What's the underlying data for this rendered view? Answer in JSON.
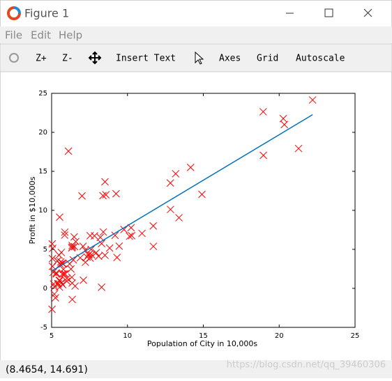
{
  "window": {
    "title": "Figure 1"
  },
  "menu": [
    "File",
    "Edit",
    "Help"
  ],
  "toolbar": [
    "Z+",
    "Z-",
    "Insert Text",
    "Axes",
    "Grid",
    "Autoscale"
  ],
  "status": "(8.4654, 14.691)",
  "watermark": "https://blog.csdn.net/qq_39460306",
  "chart_data": {
    "type": "scatter",
    "xlabel": "Population of City in 10,000s",
    "ylabel": "Profit in $10,000s",
    "xlim": [
      5,
      25
    ],
    "xticks": [
      5,
      10,
      15,
      20,
      25
    ],
    "ylim": [
      -5,
      25
    ],
    "yticks": [
      -5,
      0,
      5,
      10,
      15,
      20,
      25
    ],
    "x": [
      6.1101,
      5.5277,
      8.5186,
      7.0032,
      5.8598,
      8.3829,
      7.4764,
      8.5781,
      6.4862,
      5.0546,
      5.7107,
      14.164,
      5.734,
      8.4084,
      5.6407,
      5.3794,
      6.3654,
      5.1301,
      6.4296,
      7.0708,
      6.1891,
      20.27,
      5.4901,
      6.3261,
      5.5649,
      18.945,
      12.828,
      10.957,
      13.176,
      22.203,
      5.2524,
      6.5894,
      9.2482,
      5.8918,
      8.2111,
      7.9334,
      8.0959,
      5.6063,
      12.836,
      6.3534,
      5.4069,
      6.8825,
      11.708,
      5.7737,
      7.8247,
      7.0931,
      5.0702,
      5.8014,
      11.7,
      5.5416,
      7.5402,
      5.3077,
      7.4239,
      7.6031,
      6.3328,
      6.3589,
      6.2742,
      5.6397,
      9.3102,
      9.4536,
      8.8254,
      5.1793,
      21.279,
      14.908,
      18.959,
      7.2182,
      8.2951,
      10.236,
      5.4994,
      20.341,
      10.136,
      7.3345,
      6.0062,
      7.2259,
      5.0269,
      6.5479,
      7.5386,
      5.0365,
      10.274,
      5.1077,
      5.7292,
      5.1884,
      6.3557,
      9.7687,
      6.5159,
      8.5172,
      9.1802,
      6.002,
      5.5204,
      5.0594,
      5.7077,
      7.6366,
      5.8707,
      5.3054,
      8.2934,
      13.394,
      5.4369
    ],
    "series": [
      {
        "type": "scatter",
        "color": "#ff0000",
        "marker": "x",
        "values": [
          17.592,
          9.1302,
          13.662,
          11.854,
          6.8233,
          11.886,
          4.3483,
          12,
          6.5987,
          3.8166,
          3.2522,
          15.505,
          3.1551,
          7.2258,
          0.71618,
          3.5129,
          5.3048,
          0.56077,
          3.6518,
          5.3893,
          3.1386,
          21.767,
          4.263,
          5.1875,
          3.0825,
          22.638,
          13.501,
          7.0467,
          14.692,
          24.147,
          -1.22,
          5.9966,
          12.134,
          1.8495,
          6.5426,
          4.5623,
          4.1164,
          3.3928,
          10.117,
          5.4974,
          0.55657,
          3.9115,
          5.3854,
          2.4406,
          6.7318,
          1.0463,
          5.1337,
          1.844,
          8.0043,
          1.0179,
          6.7504,
          1.8396,
          4.2885,
          4.9981,
          1.4233,
          -1.4211,
          2.4756,
          4.6042,
          3.9624,
          5.4141,
          5.1694,
          -0.74279,
          17.929,
          12.054,
          17.054,
          4.8852,
          5.7442,
          7.7754,
          1.0173,
          20.992,
          6.6799,
          4.0259,
          1.2784,
          3.3411,
          -2.6807,
          0.29678,
          3.8845,
          5.7014,
          6.7526,
          2.0576,
          0.47953,
          0.20421,
          0.67861,
          7.5435,
          5.3436,
          4.2415,
          6.7981,
          0.92695,
          0.152,
          2.8214,
          1.8451,
          4.2959,
          7.2029,
          1.9869,
          0.14454,
          9.0551,
          0.61705
        ]
      },
      {
        "type": "line",
        "color": "#0072bd",
        "x": [
          5.0269,
          22.203
        ],
        "values": [
          2.2331,
          22.2673
        ]
      }
    ]
  }
}
